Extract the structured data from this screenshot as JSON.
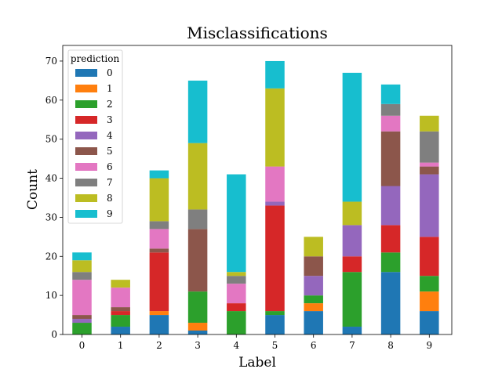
{
  "chart_data": {
    "type": "bar",
    "stacked": true,
    "title": "Misclassifications",
    "xlabel": "Label",
    "ylabel": "Count",
    "ylim": [
      0,
      74
    ],
    "yticks": [
      0,
      10,
      20,
      30,
      40,
      50,
      60,
      70
    ],
    "categories": [
      "0",
      "1",
      "2",
      "3",
      "4",
      "5",
      "6",
      "7",
      "8",
      "9"
    ],
    "grid": false,
    "legend": {
      "title": "prediction",
      "placement": "top-left"
    },
    "series": [
      {
        "name": "0",
        "color": "#1f77b4",
        "values": [
          0,
          2,
          5,
          1,
          0,
          5,
          6,
          2,
          16,
          6
        ]
      },
      {
        "name": "1",
        "color": "#ff7f0e",
        "values": [
          0,
          0,
          1,
          2,
          0,
          0,
          2,
          0,
          0,
          5
        ]
      },
      {
        "name": "2",
        "color": "#2ca02c",
        "values": [
          3,
          3,
          0,
          8,
          6,
          1,
          2,
          14,
          5,
          4
        ]
      },
      {
        "name": "3",
        "color": "#d62728",
        "values": [
          0,
          1,
          15,
          0,
          2,
          27,
          0,
          4,
          7,
          10
        ]
      },
      {
        "name": "4",
        "color": "#9467bd",
        "values": [
          1,
          0,
          0,
          0,
          0,
          1,
          5,
          8,
          10,
          16
        ]
      },
      {
        "name": "5",
        "color": "#8c564b",
        "values": [
          1,
          1,
          1,
          16,
          0,
          0,
          5,
          0,
          14,
          2
        ]
      },
      {
        "name": "6",
        "color": "#e377c2",
        "values": [
          9,
          5,
          5,
          0,
          5,
          9,
          0,
          0,
          4,
          1
        ]
      },
      {
        "name": "7",
        "color": "#7f7f7f",
        "values": [
          2,
          0,
          2,
          5,
          2,
          0,
          0,
          0,
          3,
          8
        ]
      },
      {
        "name": "8",
        "color": "#bcbd22",
        "values": [
          3,
          2,
          11,
          17,
          1,
          20,
          5,
          6,
          0,
          4
        ]
      },
      {
        "name": "9",
        "color": "#17becf",
        "values": [
          2,
          0,
          2,
          16,
          25,
          7,
          0,
          33,
          5,
          0
        ]
      }
    ]
  }
}
